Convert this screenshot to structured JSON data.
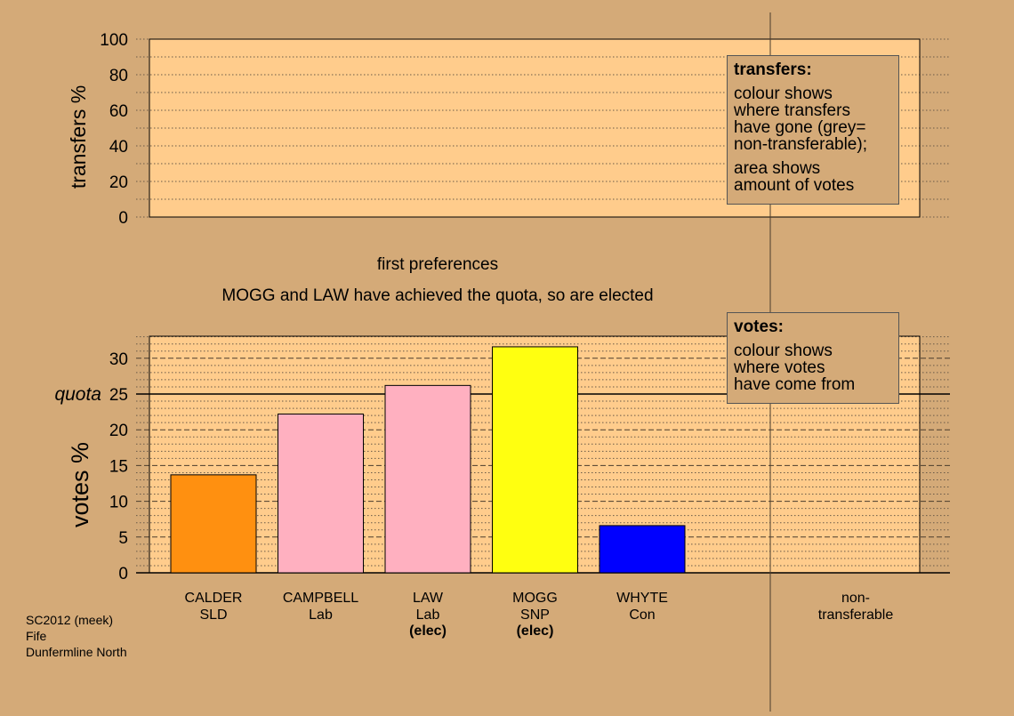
{
  "chart_data": [
    {
      "type": "bar",
      "name": "transfers",
      "ylabel": "transfers %",
      "ylim": [
        0,
        100
      ],
      "yticks": [
        0,
        20,
        40,
        60,
        80,
        100
      ],
      "categories": [],
      "values": [],
      "grid": true
    },
    {
      "type": "bar",
      "name": "votes",
      "title_line1": "first preferences",
      "title_line2": "MOGG and LAW have achieved the quota, so are elected",
      "ylabel": "votes %",
      "ylim": [
        0,
        33
      ],
      "yticks": [
        0,
        5,
        10,
        15,
        20,
        25,
        30
      ],
      "quota": 25,
      "quota_label": "quota",
      "grid": true,
      "categories": [
        "CALDER",
        "CAMPBELL",
        "LAW",
        "MOGG",
        "WHYTE"
      ],
      "parties": [
        "SLD",
        "Lab",
        "Lab",
        "SNP",
        "Con"
      ],
      "elected": [
        "",
        "",
        "(elec)",
        "(elec)",
        ""
      ],
      "values": [
        13.7,
        22.2,
        26.2,
        31.6,
        6.6
      ],
      "colors": [
        "#ff9010",
        "#ffb0c0",
        "#ffb0c0",
        "#ffff10",
        "#0000ff"
      ],
      "nontransferable_label": [
        "non-",
        "transferable"
      ]
    }
  ],
  "legends": {
    "transfers": {
      "title": "transfers:",
      "lines1": [
        "colour shows",
        "where transfers",
        "have gone (grey=",
        "non-transferable);"
      ],
      "lines2": [
        "area shows",
        "amount of votes"
      ]
    },
    "votes": {
      "title": "votes:",
      "lines1": [
        "colour shows",
        "where votes",
        "have come from"
      ]
    }
  },
  "footer": {
    "line1": "SC2012 (meek)",
    "line2": "Fife",
    "line3": "Dunfermline North"
  },
  "colors": {
    "background": "#d4aa78",
    "plot_fill": "#ffcc8c",
    "frame": "#000000"
  }
}
